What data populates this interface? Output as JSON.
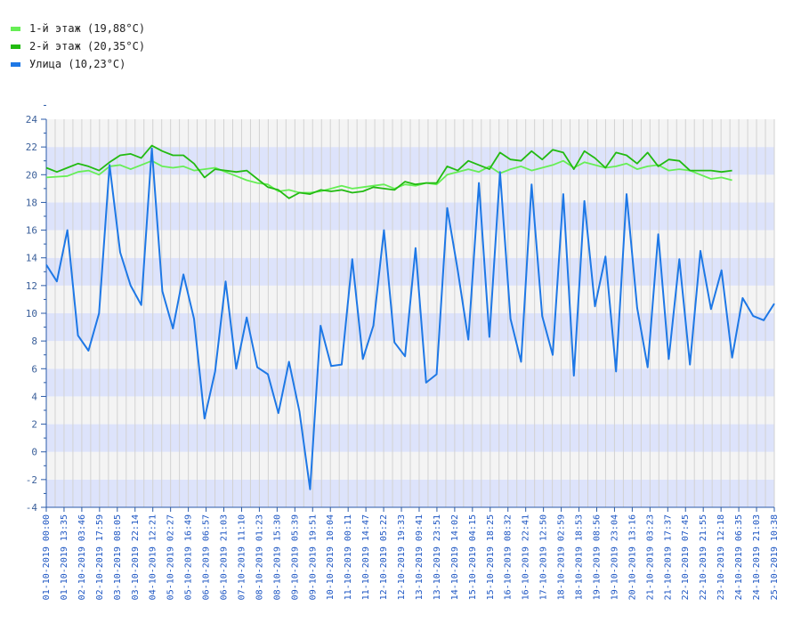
{
  "legend": [
    {
      "label": "1-й этаж (19,88°C)",
      "color": "#66ee55"
    },
    {
      "label": "2-й этаж (20,35°C)",
      "color": "#22bb11"
    },
    {
      "label": "Улица (10,23°C)",
      "color": "#1e78e6"
    }
  ],
  "chart_data": {
    "type": "line",
    "ylim": [
      -4,
      24
    ],
    "yticks": [
      "-4",
      "-2",
      "0",
      "2",
      "4",
      "6",
      "8",
      "10",
      "12",
      "14",
      "16",
      "18",
      "20",
      "22",
      "24"
    ],
    "xlabels": [
      "01-10-2019 00:00",
      "01-10-2019 13:35",
      "02-10-2019 03:46",
      "02-10-2019 17:59",
      "03-10-2019 08:05",
      "03-10-2019 22:14",
      "04-10-2019 12:21",
      "05-10-2019 02:27",
      "05-10-2019 16:49",
      "06-10-2019 06:57",
      "06-10-2019 21:03",
      "07-10-2019 11:10",
      "08-10-2019 01:23",
      "08-10-2019 15:30",
      "09-10-2019 05:39",
      "09-10-2019 19:51",
      "10-10-2019 10:04",
      "11-10-2019 00:11",
      "11-10-2019 14:47",
      "12-10-2019 05:22",
      "12-10-2019 19:33",
      "13-10-2019 09:41",
      "13-10-2019 23:51",
      "14-10-2019 14:02",
      "15-10-2019 04:15",
      "15-10-2019 18:25",
      "16-10-2019 08:32",
      "16-10-2019 22:41",
      "17-10-2019 12:50",
      "18-10-2019 02:59",
      "18-10-2019 18:53",
      "19-10-2019 08:56",
      "19-10-2019 23:04",
      "20-10-2019 13:16",
      "21-10-2019 03:23",
      "21-10-2019 17:37",
      "22-10-2019 07:45",
      "22-10-2019 21:55",
      "23-10-2019 12:18",
      "24-10-2019 06:35",
      "24-10-2019 21:03",
      "25-10-2019 10:38"
    ],
    "grid": true,
    "series": [
      {
        "name": "1-й этаж",
        "color": "#66ee55",
        "values": [
          [
            0,
            19.8
          ],
          [
            2,
            19.9
          ],
          [
            3,
            20.2
          ],
          [
            4,
            20.3
          ],
          [
            5,
            20.0
          ],
          [
            6,
            20.6
          ],
          [
            7,
            20.7
          ],
          [
            8,
            20.4
          ],
          [
            9,
            20.7
          ],
          [
            10,
            21.0
          ],
          [
            11,
            20.6
          ],
          [
            12,
            20.5
          ],
          [
            13,
            20.6
          ],
          [
            14,
            20.3
          ],
          [
            15,
            20.4
          ],
          [
            16,
            20.5
          ],
          [
            17,
            20.2
          ],
          [
            18,
            19.9
          ],
          [
            19,
            19.6
          ],
          [
            20,
            19.4
          ],
          [
            21,
            19.3
          ],
          [
            22,
            18.8
          ],
          [
            23,
            18.9
          ],
          [
            24,
            18.7
          ],
          [
            25,
            18.7
          ],
          [
            26,
            18.8
          ],
          [
            27,
            19.0
          ],
          [
            28,
            19.2
          ],
          [
            29,
            19.0
          ],
          [
            30,
            19.1
          ],
          [
            31,
            19.2
          ],
          [
            32,
            19.3
          ],
          [
            33,
            19.0
          ],
          [
            34,
            19.3
          ],
          [
            35,
            19.2
          ],
          [
            36,
            19.4
          ],
          [
            37,
            19.3
          ],
          [
            38,
            20.0
          ],
          [
            39,
            20.2
          ],
          [
            40,
            20.4
          ],
          [
            41,
            20.2
          ],
          [
            42,
            20.6
          ],
          [
            43,
            20.1
          ],
          [
            44,
            20.4
          ],
          [
            45,
            20.6
          ],
          [
            46,
            20.3
          ],
          [
            47,
            20.5
          ],
          [
            48,
            20.7
          ],
          [
            49,
            21.0
          ],
          [
            50,
            20.5
          ],
          [
            51,
            20.9
          ],
          [
            52,
            20.7
          ],
          [
            53,
            20.5
          ],
          [
            54,
            20.6
          ],
          [
            55,
            20.8
          ],
          [
            56,
            20.4
          ],
          [
            57,
            20.6
          ],
          [
            58,
            20.7
          ],
          [
            59,
            20.3
          ],
          [
            60,
            20.4
          ],
          [
            61,
            20.3
          ],
          [
            62,
            20.0
          ],
          [
            63,
            19.7
          ],
          [
            64,
            19.8
          ],
          [
            65,
            19.6
          ]
        ]
      },
      {
        "name": "2-й этаж",
        "color": "#22bb11",
        "values": [
          [
            0,
            20.5
          ],
          [
            1,
            20.2
          ],
          [
            2,
            20.5
          ],
          [
            3,
            20.8
          ],
          [
            4,
            20.6
          ],
          [
            5,
            20.3
          ],
          [
            6,
            20.9
          ],
          [
            7,
            21.4
          ],
          [
            8,
            21.5
          ],
          [
            9,
            21.2
          ],
          [
            10,
            22.1
          ],
          [
            11,
            21.7
          ],
          [
            12,
            21.4
          ],
          [
            13,
            21.4
          ],
          [
            14,
            20.8
          ],
          [
            15,
            19.8
          ],
          [
            16,
            20.4
          ],
          [
            17,
            20.3
          ],
          [
            18,
            20.2
          ],
          [
            19,
            20.3
          ],
          [
            20,
            19.7
          ],
          [
            21,
            19.1
          ],
          [
            22,
            18.9
          ],
          [
            23,
            18.3
          ],
          [
            24,
            18.7
          ],
          [
            25,
            18.6
          ],
          [
            26,
            18.9
          ],
          [
            27,
            18.8
          ],
          [
            28,
            18.9
          ],
          [
            29,
            18.7
          ],
          [
            30,
            18.8
          ],
          [
            31,
            19.1
          ],
          [
            32,
            19.0
          ],
          [
            33,
            18.9
          ],
          [
            34,
            19.5
          ],
          [
            35,
            19.3
          ],
          [
            36,
            19.4
          ],
          [
            37,
            19.4
          ],
          [
            38,
            20.6
          ],
          [
            39,
            20.3
          ],
          [
            40,
            21.0
          ],
          [
            41,
            20.7
          ],
          [
            42,
            20.4
          ],
          [
            43,
            21.6
          ],
          [
            44,
            21.1
          ],
          [
            45,
            21.0
          ],
          [
            46,
            21.7
          ],
          [
            47,
            21.1
          ],
          [
            48,
            21.8
          ],
          [
            49,
            21.6
          ],
          [
            50,
            20.4
          ],
          [
            51,
            21.7
          ],
          [
            52,
            21.2
          ],
          [
            53,
            20.5
          ],
          [
            54,
            21.6
          ],
          [
            55,
            21.4
          ],
          [
            56,
            20.8
          ],
          [
            57,
            21.6
          ],
          [
            58,
            20.6
          ],
          [
            59,
            21.1
          ],
          [
            60,
            21.0
          ],
          [
            61,
            20.3
          ],
          [
            62,
            20.3
          ],
          [
            63,
            20.3
          ],
          [
            64,
            20.2
          ],
          [
            65,
            20.3
          ]
        ]
      },
      {
        "name": "Улица",
        "color": "#1e78e6",
        "values": [
          [
            0,
            13.5
          ],
          [
            1,
            12.3
          ],
          [
            2,
            16.0
          ],
          [
            3,
            8.4
          ],
          [
            4,
            7.3
          ],
          [
            5,
            10.0
          ],
          [
            6,
            20.7
          ],
          [
            7,
            14.4
          ],
          [
            8,
            12.0
          ],
          [
            9,
            10.6
          ],
          [
            10,
            21.9
          ],
          [
            11,
            11.6
          ],
          [
            12,
            8.9
          ],
          [
            13,
            12.8
          ],
          [
            14,
            9.6
          ],
          [
            15,
            2.4
          ],
          [
            16,
            5.8
          ],
          [
            17,
            12.3
          ],
          [
            18,
            6.0
          ],
          [
            19,
            9.7
          ],
          [
            20,
            6.1
          ],
          [
            21,
            5.6
          ],
          [
            22,
            2.8
          ],
          [
            23,
            6.5
          ],
          [
            24,
            2.9
          ],
          [
            25,
            -2.7
          ],
          [
            26,
            9.1
          ],
          [
            27,
            6.2
          ],
          [
            28,
            6.3
          ],
          [
            29,
            13.9
          ],
          [
            30,
            6.7
          ],
          [
            31,
            9.1
          ],
          [
            32,
            16.0
          ],
          [
            33,
            7.9
          ],
          [
            34,
            6.9
          ],
          [
            35,
            14.7
          ],
          [
            36,
            5.0
          ],
          [
            37,
            5.6
          ],
          [
            38,
            17.6
          ],
          [
            39,
            13.1
          ],
          [
            40,
            8.1
          ],
          [
            41,
            19.4
          ],
          [
            42,
            8.3
          ],
          [
            43,
            20.2
          ],
          [
            44,
            9.6
          ],
          [
            45,
            6.5
          ],
          [
            46,
            19.3
          ],
          [
            47,
            9.8
          ],
          [
            48,
            7.0
          ],
          [
            49,
            18.6
          ],
          [
            50,
            5.5
          ],
          [
            51,
            18.1
          ],
          [
            52,
            10.5
          ],
          [
            53,
            14.1
          ],
          [
            54,
            5.8
          ],
          [
            55,
            18.6
          ],
          [
            56,
            10.4
          ],
          [
            57,
            6.1
          ],
          [
            58,
            15.7
          ],
          [
            59,
            6.7
          ],
          [
            60,
            13.9
          ],
          [
            61,
            6.3
          ],
          [
            62,
            14.5
          ],
          [
            63,
            10.3
          ],
          [
            64,
            13.1
          ],
          [
            65,
            6.8
          ],
          [
            66,
            11.1
          ],
          [
            67,
            9.8
          ],
          [
            68,
            9.5
          ],
          [
            69,
            10.7
          ]
        ]
      }
    ]
  }
}
